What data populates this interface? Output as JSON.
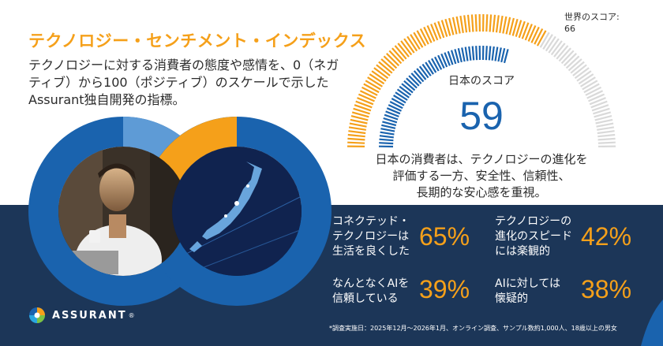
{
  "header": {
    "title": "テクノロジー・センチメント・インデックス",
    "subtitle": "テクノロジーに対する消費者の態度や感情を、0（ネガティブ）から100（ポジティブ）のスケールで示したAssurant独自開発の指標。"
  },
  "world_score": {
    "label": "世界のスコア:",
    "value": "66",
    "level": 66
  },
  "japan_score": {
    "label": "日本のスコア",
    "value": "59",
    "level": 59,
    "description_lines": [
      "日本の消費者は、テクノロジーの進化を",
      "評価する一方、安全性、信頼性、",
      "長期的な安心感を重視。"
    ]
  },
  "stats": [
    {
      "lines": [
        "コネクテッド・",
        "テクノロジーは",
        "生活を良くした"
      ],
      "percent": "65%"
    },
    {
      "lines": [
        "テクノロジーの",
        "進化のスピード",
        "には楽観的"
      ],
      "percent": "42%"
    },
    {
      "lines": [
        "なんとなくAIを",
        "信頼している"
      ],
      "percent": "39%"
    },
    {
      "lines": [
        "AIに対しては",
        "懐疑的"
      ],
      "percent": "38%"
    }
  ],
  "logo": {
    "name": "ASSURANT",
    "mark": "®"
  },
  "footnote": "*調査実施日：2025年12月～2026年1月、オンライン調査、サンプル数約1,000人、18歳以上の男女",
  "colors": {
    "navy": "#1c3658",
    "blue": "#1a63ae",
    "orange": "#f5a01a",
    "gray": "#d9d9d9"
  },
  "images": {
    "left_circle": "smiling-man-with-coffee-photo",
    "right_circle": "japan-digital-map-photo"
  }
}
